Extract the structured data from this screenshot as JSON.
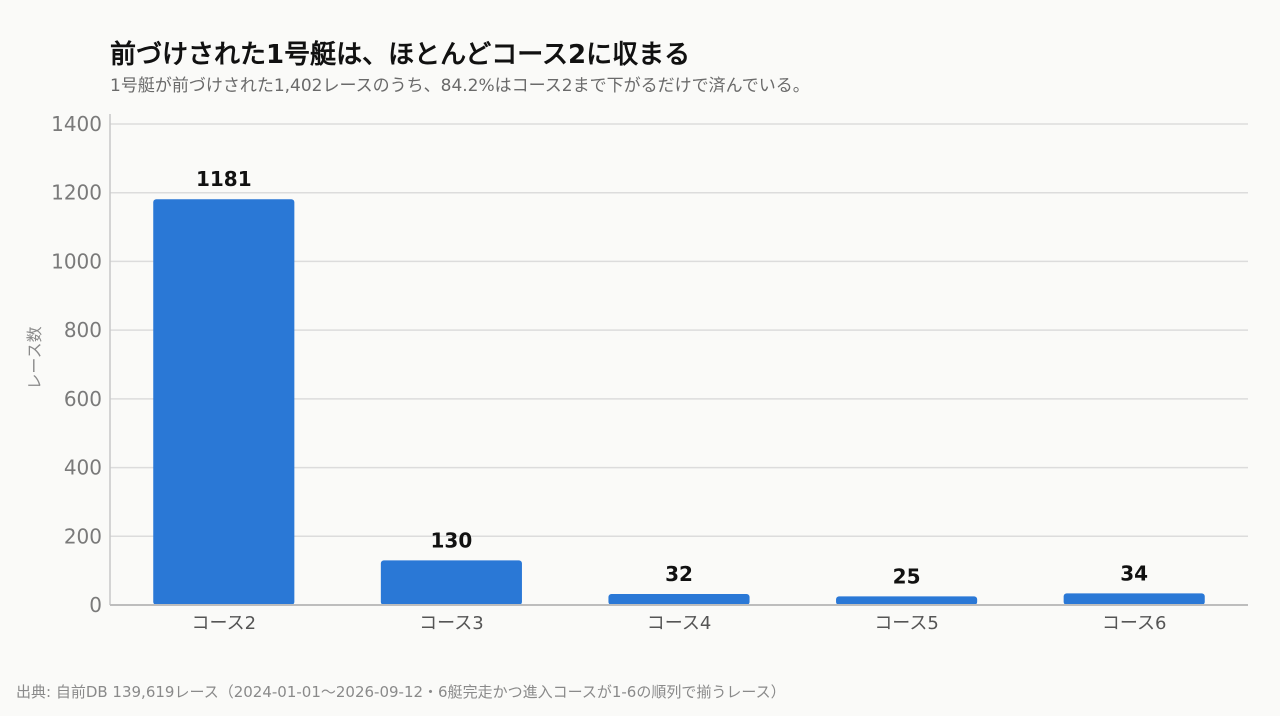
{
  "chart_data": {
    "type": "bar",
    "title": "前づけされた1号艇は、ほとんどコース2に収まる",
    "subtitle": "1号艇が前づけされた1,402レースのうち、84.2%はコース2まで下がるだけで済んでいる。",
    "xlabel": "",
    "ylabel": "レース数",
    "categories": [
      "コース2",
      "コース3",
      "コース4",
      "コース5",
      "コース6"
    ],
    "values": [
      1181,
      130,
      32,
      25,
      34
    ],
    "ylim": [
      0,
      1400
    ],
    "yticks": [
      0,
      200,
      400,
      600,
      800,
      1000,
      1200,
      1400
    ],
    "grid": true,
    "bar_color": "#2a78d6",
    "source": "出典: 自前DB 139,619レース（2024-01-01〜2026-09-12・6艇完走かつ進入コースが1-6の順列で揃うレース）"
  }
}
